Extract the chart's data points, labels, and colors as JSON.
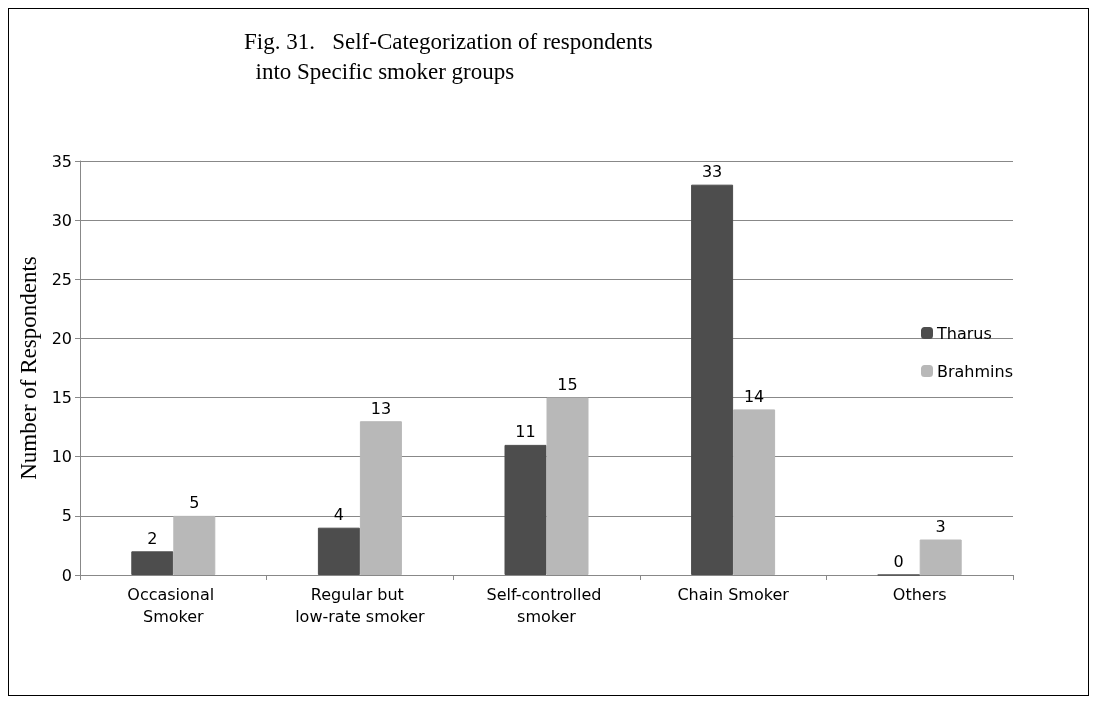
{
  "chart_data": {
    "type": "bar",
    "title": "Fig. 31.   Self-Categorization of respondents\n  into Specific smoker groups",
    "ylabel": "Number of Respondents",
    "categories": [
      "Occasional Smoker",
      "Regular but low-rate smoker",
      "Self-controlled smoker",
      "Chain Smoker",
      "Others"
    ],
    "series": [
      {
        "name": "Tharus",
        "color": "#4d4d4d",
        "values": [
          2,
          4,
          11,
          33,
          0
        ]
      },
      {
        "name": "Brahmins",
        "color": "#b8b8b8",
        "values": [
          5,
          13,
          15,
          14,
          3
        ]
      }
    ],
    "ylim": [
      0,
      35
    ],
    "yticks": [
      0,
      5,
      10,
      15,
      20,
      25,
      30,
      35
    ],
    "grid": "y",
    "legend": "right",
    "data_labels": true
  }
}
